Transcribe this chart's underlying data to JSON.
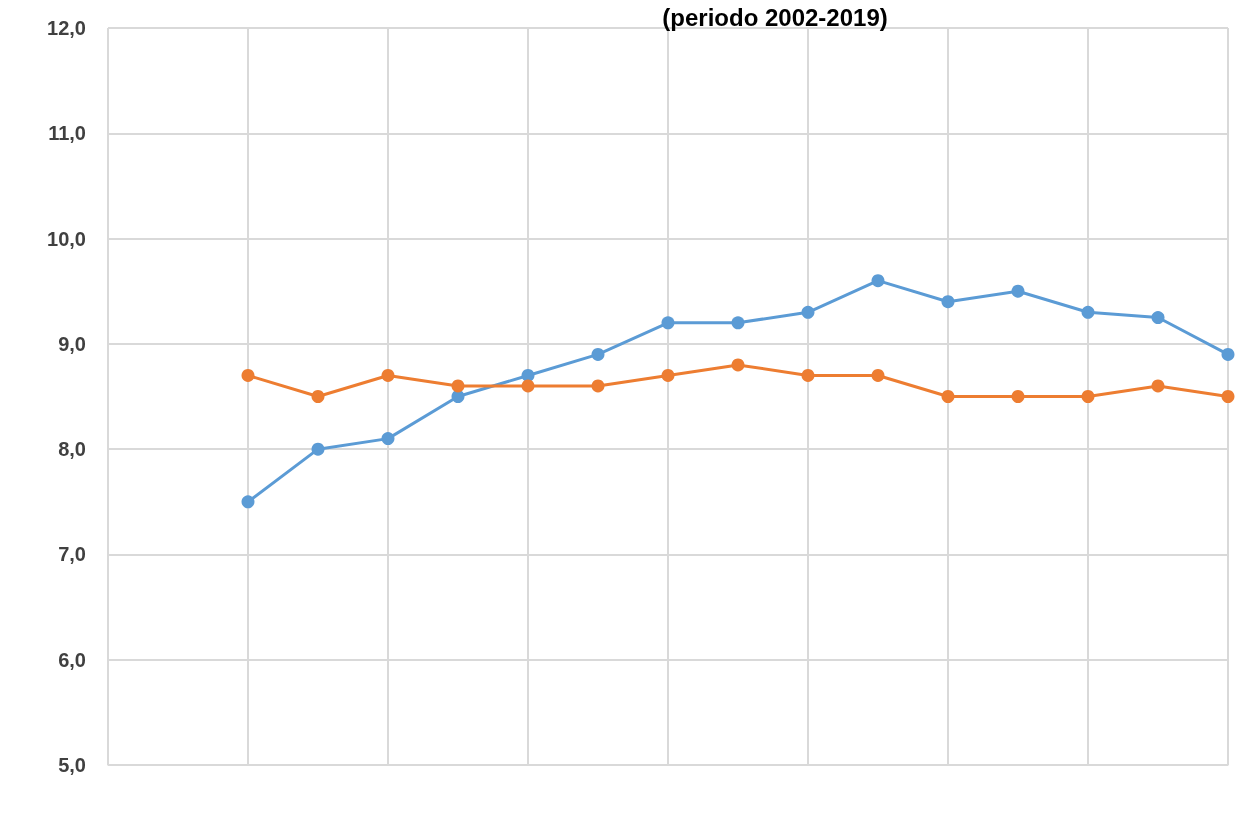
{
  "chart_data": {
    "type": "line",
    "title": "(periodo 2002-2019)",
    "categories": [
      null,
      null,
      null,
      null,
      null,
      null,
      null,
      null,
      null,
      null,
      null,
      null,
      null,
      null,
      null,
      null,
      null
    ],
    "series": [
      {
        "color": "#5b9bd5",
        "values": [
          null,
          null,
          7.5,
          8.0,
          8.1,
          8.5,
          8.7,
          8.9,
          9.2,
          9.2,
          9.3,
          9.6,
          9.4,
          9.5,
          9.3,
          9.25,
          8.9
        ]
      },
      {
        "color": "#ed7d31",
        "values": [
          null,
          null,
          8.7,
          8.5,
          8.7,
          8.6,
          8.6,
          8.6,
          8.7,
          8.8,
          8.7,
          8.7,
          8.5,
          8.5,
          8.5,
          8.6,
          8.5
        ]
      }
    ],
    "ylim": [
      5,
      12
    ],
    "yticks": [
      {
        "value": 5,
        "label": "5,0"
      },
      {
        "value": 6,
        "label": "6,0"
      },
      {
        "value": 7,
        "label": "7,0"
      },
      {
        "value": 8,
        "label": "8,0"
      },
      {
        "value": 9,
        "label": "9,0"
      },
      {
        "value": 10,
        "label": "10,0"
      },
      {
        "value": 11,
        "label": "11,0"
      },
      {
        "value": 12,
        "label": "12,0"
      }
    ],
    "grid": true,
    "marker": "circle",
    "line_style": "solid",
    "tick_labels": "y"
  }
}
